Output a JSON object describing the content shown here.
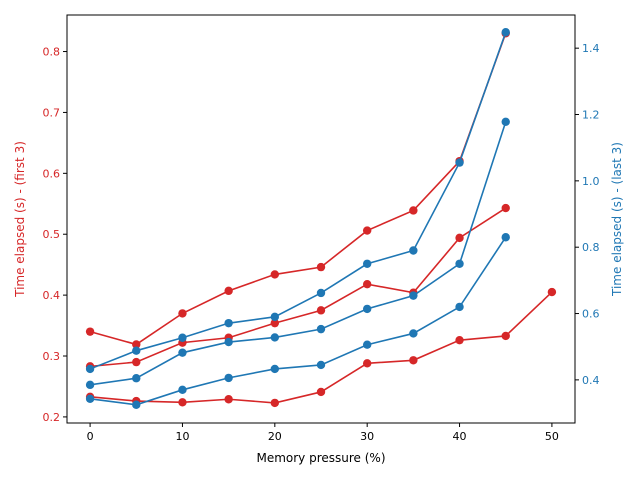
{
  "chart_data": {
    "type": "line",
    "title": "",
    "xlabel": "Memory pressure (%)",
    "ylabel_left": "Time elapsed (s) - (first 3)",
    "ylabel_right": "Time elapsed (s) - (last 3)",
    "xlim": [
      -2.5,
      52.5
    ],
    "xticks": [
      0,
      10,
      20,
      30,
      40,
      50
    ],
    "ylim_left": [
      0.19,
      0.86
    ],
    "yticks_left": [
      0.2,
      0.3,
      0.4,
      0.5,
      0.6,
      0.7,
      0.8
    ],
    "ylim_right": [
      0.27,
      1.5
    ],
    "yticks_right": [
      0.4,
      0.6,
      0.8,
      1.0,
      1.2,
      1.4
    ],
    "grid": false,
    "colors": {
      "left": "#d62728",
      "right": "#1f77b4",
      "axis": "#000000"
    },
    "series": [
      {
        "axis": "left",
        "x": [
          0,
          5,
          10,
          15,
          20,
          25,
          30,
          35,
          40,
          45
        ],
        "values": [
          0.34,
          0.319,
          0.37,
          0.407,
          0.434,
          0.446,
          0.506,
          0.539,
          0.62,
          0.83
        ]
      },
      {
        "axis": "left",
        "x": [
          0,
          5,
          10,
          15,
          20,
          25,
          30,
          35,
          40,
          45
        ],
        "values": [
          0.283,
          0.29,
          0.322,
          0.33,
          0.354,
          0.375,
          0.418,
          0.404,
          0.494,
          0.543
        ]
      },
      {
        "axis": "left",
        "x": [
          0,
          5,
          10,
          15,
          20,
          25,
          30,
          35,
          40,
          45,
          50
        ],
        "values": [
          0.233,
          0.226,
          0.224,
          0.229,
          0.223,
          0.241,
          0.288,
          0.293,
          0.326,
          0.333,
          0.405
        ]
      },
      {
        "axis": "right",
        "x": [
          0,
          5,
          10,
          15,
          20,
          25,
          30,
          35,
          40,
          45
        ],
        "values": [
          0.433,
          0.488,
          0.527,
          0.571,
          0.59,
          0.662,
          0.75,
          0.79,
          1.055,
          1.448
        ]
      },
      {
        "axis": "right",
        "x": [
          0,
          5,
          10,
          15,
          20,
          25,
          30,
          35,
          40,
          45
        ],
        "values": [
          0.385,
          0.405,
          0.482,
          0.514,
          0.528,
          0.553,
          0.614,
          0.654,
          0.75,
          1.178
        ]
      },
      {
        "axis": "right",
        "x": [
          0,
          5,
          10,
          15,
          20,
          25,
          30,
          35,
          40,
          45
        ],
        "values": [
          0.343,
          0.325,
          0.37,
          0.406,
          0.433,
          0.445,
          0.506,
          0.54,
          0.62,
          0.83
        ]
      }
    ]
  }
}
